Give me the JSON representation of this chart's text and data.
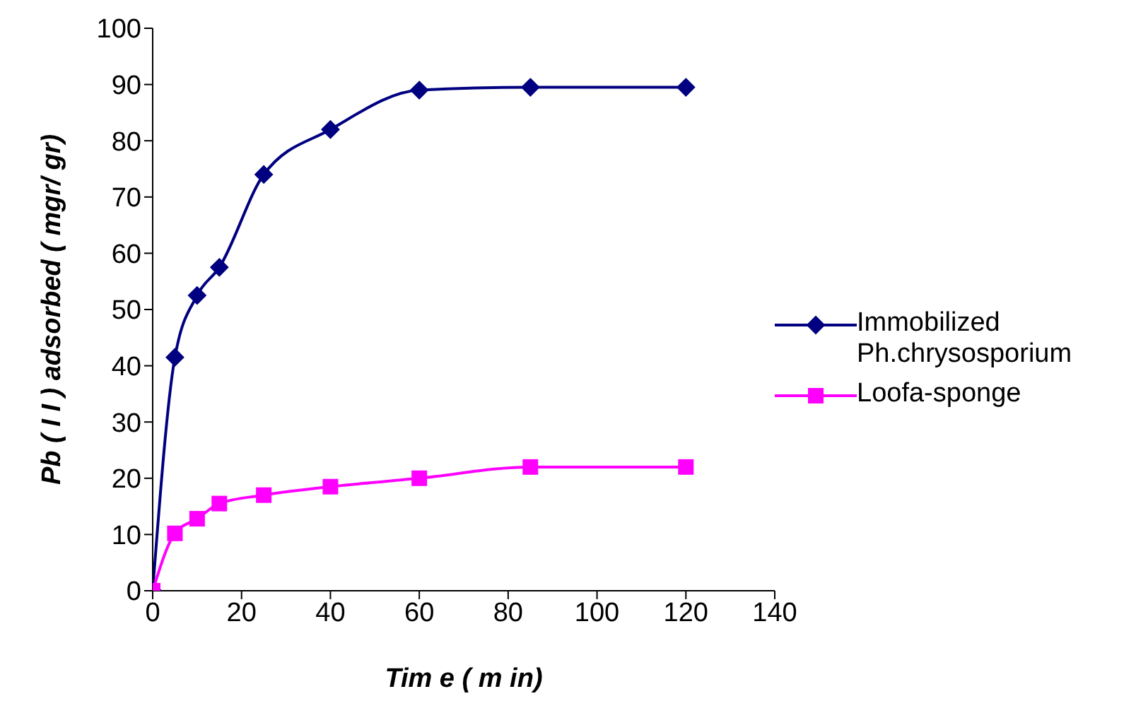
{
  "chart_data": {
    "type": "line",
    "xlabel": "Tim e  ( m in)",
    "ylabel": "Pb ( I I )  adsorbed ( mgr/ gr)",
    "x": [
      0,
      5,
      10,
      15,
      25,
      40,
      60,
      85,
      120
    ],
    "series": [
      {
        "name": "Immobilized Ph.chrysosporium",
        "color": "#000080",
        "marker": "diamond",
        "values": [
          0,
          41.5,
          52.5,
          57.5,
          74,
          82,
          89,
          89.5,
          89.5
        ]
      },
      {
        "name": "Loofa-sponge",
        "color": "#ff00ff",
        "marker": "square",
        "values": [
          0,
          10.2,
          12.8,
          15.5,
          17,
          18.5,
          20,
          22,
          22
        ]
      }
    ],
    "xlim": [
      0,
      140
    ],
    "xticks": [
      0,
      20,
      40,
      60,
      80,
      100,
      120,
      140
    ],
    "ylim": [
      0,
      100
    ],
    "yticks": [
      0,
      10,
      20,
      30,
      40,
      50,
      60,
      70,
      80,
      90,
      100
    ],
    "grid": false,
    "legend": "right"
  }
}
